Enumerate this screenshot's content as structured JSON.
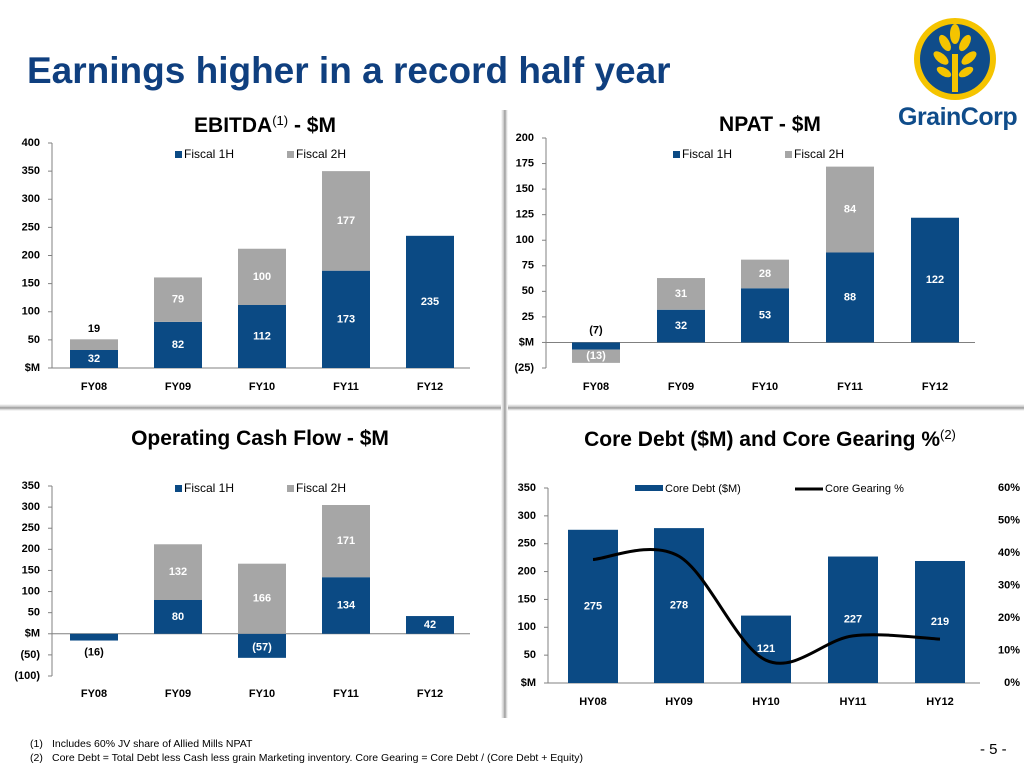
{
  "page": {
    "title": "Earnings higher in a record half year",
    "page_number": "- 5 -",
    "footnotes": [
      {
        "num": "(1)",
        "text": "Includes 60% JV share of Allied Mills NPAT"
      },
      {
        "num": "(2)",
        "text": "Core Debt = Total Debt less Cash less grain Marketing inventory. Core Gearing = Core Debt / (Core Debt + Equity)"
      }
    ]
  },
  "logo": {
    "name": "GrainCorp",
    "icon": "wheat-emblem-icon"
  },
  "colors": {
    "fiscal_1h": "#0b4a84",
    "fiscal_2h": "#a6a6a6",
    "gearing_line": "#000000",
    "title": "#0f3f7f"
  },
  "panels": {
    "ebitda": {
      "title_main": "EBITDA",
      "title_sup": "(1)",
      "title_rest": " - $M"
    },
    "npat": {
      "title": "NPAT - $M"
    },
    "ocf": {
      "title": "Operating Cash Flow - $M"
    },
    "core_debt": {
      "title": "Core Debt ($M) and Core Gearing %",
      "title_sup": "(2)"
    }
  },
  "chart_data": [
    {
      "id": "ebitda",
      "type": "bar",
      "stacked": true,
      "title": "EBITDA(1) - $M",
      "categories": [
        "FY08",
        "FY09",
        "FY10",
        "FY11",
        "FY12"
      ],
      "series": [
        {
          "name": "Fiscal 1H",
          "color": "#0b4a84",
          "values": [
            32,
            82,
            112,
            173,
            235
          ]
        },
        {
          "name": "Fiscal 2H",
          "color": "#a6a6a6",
          "values": [
            19,
            79,
            100,
            177,
            null
          ]
        }
      ],
      "ylim": [
        0,
        400
      ],
      "yticks": [
        0,
        50,
        100,
        150,
        200,
        250,
        300,
        350,
        400
      ],
      "ytick_labels": [
        "$M",
        "50",
        "100",
        "150",
        "200",
        "250",
        "300",
        "350",
        "400"
      ],
      "data_labels": [
        {
          "series": 0,
          "labels": [
            "32",
            "82",
            "112",
            "173",
            "235"
          ]
        },
        {
          "series": 1,
          "labels": [
            "19",
            "79",
            "100",
            "177",
            ""
          ]
        }
      ],
      "legend": "top-center",
      "grid": false
    },
    {
      "id": "npat",
      "type": "bar",
      "stacked": true,
      "title": "NPAT - $M",
      "categories": [
        "FY08",
        "FY09",
        "FY10",
        "FY11",
        "FY12"
      ],
      "series": [
        {
          "name": "Fiscal 1H",
          "color": "#0b4a84",
          "values": [
            -7,
            32,
            53,
            88,
            122
          ]
        },
        {
          "name": "Fiscal 2H",
          "color": "#a6a6a6",
          "values": [
            -13,
            31,
            28,
            84,
            null
          ]
        }
      ],
      "ylim": [
        -25,
        200
      ],
      "yticks": [
        -25,
        0,
        25,
        50,
        75,
        100,
        125,
        150,
        175,
        200
      ],
      "ytick_labels": [
        "(25)",
        "$M",
        "25",
        "50",
        "75",
        "100",
        "125",
        "150",
        "175",
        "200"
      ],
      "data_labels": [
        {
          "series": 0,
          "labels": [
            "(7)",
            "32",
            "53",
            "88",
            "122"
          ]
        },
        {
          "series": 1,
          "labels": [
            "(13)",
            "31",
            "28",
            "84",
            ""
          ]
        }
      ],
      "legend": "top-center",
      "grid": false
    },
    {
      "id": "ocf",
      "type": "bar",
      "stacked": true,
      "title": "Operating Cash Flow - $M",
      "categories": [
        "FY08",
        "FY09",
        "FY10",
        "FY11",
        "FY12"
      ],
      "series": [
        {
          "name": "Fiscal 1H",
          "color": "#0b4a84",
          "values": [
            -16,
            80,
            -57,
            134,
            42
          ]
        },
        {
          "name": "Fiscal 2H",
          "color": "#a6a6a6",
          "values": [
            null,
            132,
            166,
            171,
            null
          ]
        }
      ],
      "ylim": [
        -100,
        350
      ],
      "yticks": [
        -100,
        -50,
        0,
        50,
        100,
        150,
        200,
        250,
        300,
        350
      ],
      "ytick_labels": [
        "(100)",
        "(50)",
        "$M",
        "50",
        "100",
        "150",
        "200",
        "250",
        "300",
        "350"
      ],
      "data_labels": [
        {
          "series": 0,
          "labels": [
            "(16)",
            "80",
            "(57)",
            "134",
            "42"
          ]
        },
        {
          "series": 1,
          "labels": [
            "",
            "132",
            "166",
            "171",
            ""
          ]
        }
      ],
      "legend": "top-center",
      "grid": false
    },
    {
      "id": "core_debt",
      "type": "bar",
      "title": "Core Debt ($M) and Core Gearing %(2)",
      "categories": [
        "HY08",
        "HY09",
        "HY10",
        "HY11",
        "HY12"
      ],
      "series": [
        {
          "name": "Core Debt ($M)",
          "type": "bar",
          "color": "#0b4a84",
          "axis": "left",
          "values": [
            275,
            278,
            121,
            227,
            219
          ]
        },
        {
          "name": "Core Gearing %",
          "type": "line",
          "color": "#000000",
          "axis": "right",
          "values": [
            38,
            39,
            7,
            14.5,
            13.5
          ]
        }
      ],
      "ylim": [
        0,
        350
      ],
      "yticks": [
        0,
        50,
        100,
        150,
        200,
        250,
        300,
        350
      ],
      "ytick_labels": [
        "$M",
        "50",
        "100",
        "150",
        "200",
        "250",
        "300",
        "350"
      ],
      "y2lim": [
        0,
        60
      ],
      "y2ticks": [
        0,
        10,
        20,
        30,
        40,
        50,
        60
      ],
      "y2tick_labels": [
        "0%",
        "10%",
        "20%",
        "30%",
        "40%",
        "50%",
        "60%"
      ],
      "data_labels": [
        {
          "series": 0,
          "labels": [
            "275",
            "278",
            "121",
            "227",
            "219"
          ]
        }
      ],
      "legend": "top-center",
      "grid": false
    }
  ]
}
